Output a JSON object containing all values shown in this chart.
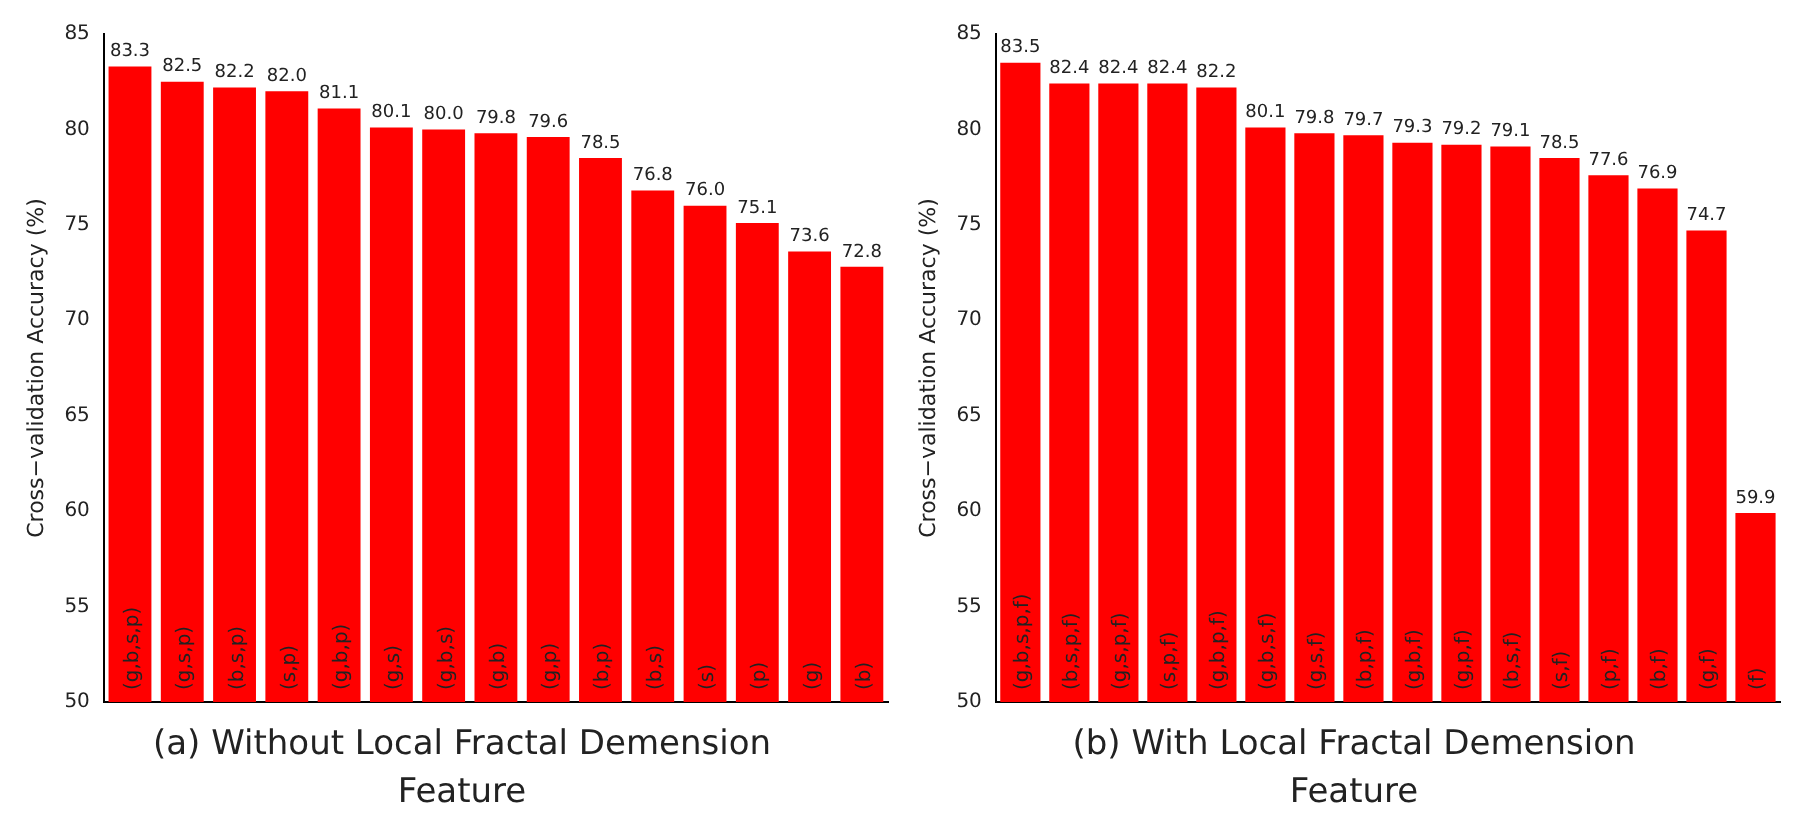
{
  "chart_data": [
    {
      "type": "bar",
      "title": "(a) Without Local Fractal Demension Feature",
      "ylabel": "Cross−validation Accuracy (%)",
      "categories": [
        "(g,b,s,p)",
        "(g,s,p)",
        "(b,s,p)",
        "(s,p)",
        "(g,b,p)",
        "(g,s)",
        "(g,b,s)",
        "(g,b)",
        "(g,p)",
        "(b,p)",
        "(b,s)",
        "(s)",
        "(p)",
        "(g)",
        "(b)"
      ],
      "values": [
        83.3,
        82.5,
        82.2,
        82.0,
        81.1,
        80.1,
        80.0,
        79.8,
        79.6,
        78.5,
        76.8,
        76.0,
        75.1,
        73.6,
        72.8
      ],
      "value_labels": [
        "83.3",
        "82.5",
        "82.2",
        "82.0",
        "81.1",
        "80.1",
        "80.0",
        "79.8",
        "79.6",
        "78.5",
        "76.8",
        "76.0",
        "75.1",
        "73.6",
        "72.8"
      ],
      "color": "#ff0000",
      "ylim": [
        50,
        85
      ],
      "yticks": [
        50,
        55,
        60,
        65,
        70,
        75,
        80,
        85
      ],
      "grid": false
    },
    {
      "type": "bar",
      "title": "(b) With Local Fractal Demension Feature",
      "ylabel": "Cross−validation Accuracy (%)",
      "categories": [
        "(g,b,s,p,f)",
        "(b,s,p,f)",
        "(g,s,p,f)",
        "(s,p,f)",
        "(g,b,p,f)",
        "(g,b,s,f)",
        "(g,s,f)",
        "(b,p,f)",
        "(g,b,f)",
        "(g,p,f)",
        "(b,s,f)",
        "(s,f)",
        "(p,f)",
        "(b,f)",
        "(g,f)",
        "(f)"
      ],
      "values": [
        83.5,
        82.4,
        82.4,
        82.4,
        82.2,
        80.1,
        79.8,
        79.7,
        79.3,
        79.2,
        79.1,
        78.5,
        77.6,
        76.9,
        74.7,
        59.9
      ],
      "value_labels": [
        "83.5",
        "82.4",
        "82.4",
        "82.4",
        "82.2",
        "80.1",
        "79.8",
        "79.7",
        "79.3",
        "79.2",
        "79.1",
        "78.5",
        "77.6",
        "76.9",
        "74.7",
        "59.9"
      ],
      "color": "#ff0000",
      "ylim": [
        50,
        85
      ],
      "yticks": [
        50,
        55,
        60,
        65,
        70,
        75,
        80,
        85
      ],
      "grid": false
    }
  ]
}
